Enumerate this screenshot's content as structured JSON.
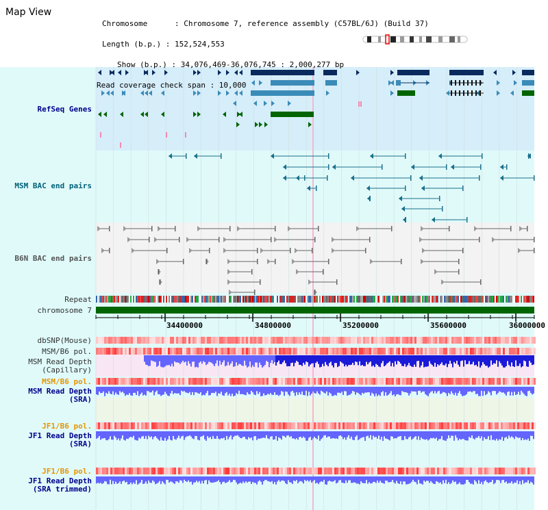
{
  "app": {
    "title": "Map View"
  },
  "info": {
    "lines": [
      "Chromosome      : Chromosome 7, reference assembly (C57BL/6J) (Build 37)",
      "Length (b.p.) : 152,524,553",
      "Show (b.p.) : 34,076,469-36,076,745 : 2,000,277 bp",
      "Read coverage check span : 10,000"
    ]
  },
  "tracks": {
    "refseq": "RefSeq Genes",
    "msm_bac": "MSM BAC end pairs",
    "b6n_bac": "B6N BAC end pairs",
    "repeat": "Repeat",
    "chromosome": "chromosome 7",
    "dbsnp": "dbSNP(Mouse)",
    "msm_b6_pol": "MSM/B6 pol.",
    "msm_depth_cap_1": "MSM Read Depth",
    "msm_depth_cap_2": "(Capillary)",
    "msm_b6_pol2": "MSM/B6 pol.",
    "msm_depth_sra_1": "MSM Read Depth",
    "msm_depth_sra_2": "(SRA)",
    "jf1_b6_pol": "JF1/B6 pol.",
    "jf1_depth_sra_1": "JF1 Read Depth",
    "jf1_depth_sra_2": "(SRA)",
    "jf1_b6_pol2": "JF1/B6 pol.",
    "jf1_depth_trim_1": "JF1 Read Depth",
    "jf1_depth_trim_2": "(SRA trimmed)"
  },
  "axis": {
    "ticks": [
      "34400000",
      "34800000",
      "35200000",
      "35600000",
      "36000000"
    ]
  },
  "colors": {
    "refseq_dark": "#0a2a5e",
    "refseq_mid": "#3b8bb8",
    "refseq_green": "#006400",
    "bac": "#1a6f8a",
    "b6n": "#666666",
    "chromosome": "#006400",
    "depth": "#6464ff"
  }
}
